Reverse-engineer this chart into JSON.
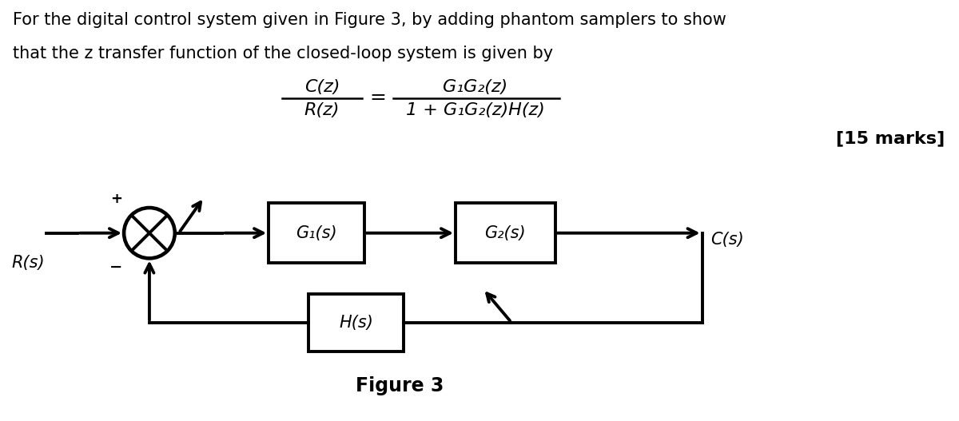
{
  "background_color": "#ffffff",
  "text_line1": "For the digital control system given in Figure 3, by adding phantom samplers to show",
  "text_line2": "that the z transfer function of the closed-loop system is given by",
  "formula_num": "C(z)",
  "formula_den": "R(z)",
  "formula_rhs_num": "G₁G₂(z)",
  "formula_rhs_den": "1 + G₁G₂(z)H(z)",
  "marks_text": "[15 marks]",
  "figure_label": "Figure 3",
  "Rs_label": "R(s)",
  "Cs_label": "C(s)",
  "G1_label": "G₁(s)",
  "G2_label": "G₂(s)",
  "Hs_label": "H(s)",
  "plus_sign": "+",
  "minus_sign": "−",
  "text_fontsize": 15,
  "formula_fontsize": 16,
  "marks_fontsize": 16,
  "diagram_fontsize": 15,
  "lw": 2.8
}
